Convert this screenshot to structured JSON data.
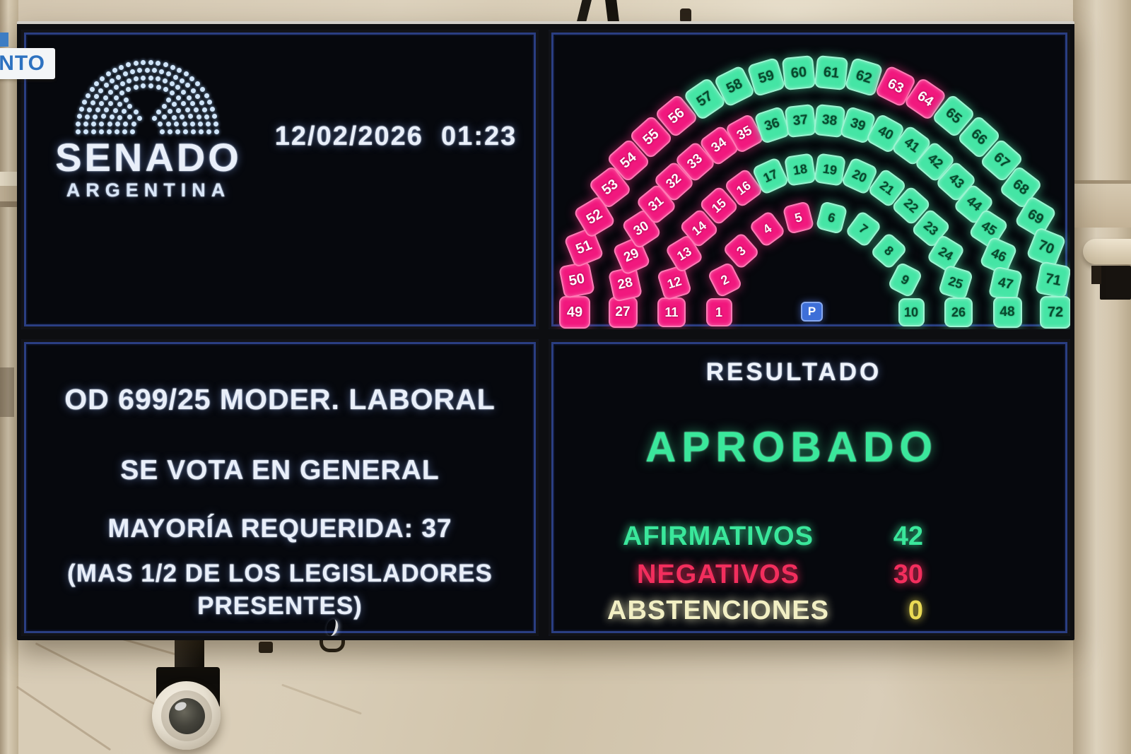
{
  "broadcast_badge": {
    "text": "NTO",
    "text_color": "#2e72c0"
  },
  "info_screen": {
    "logo_title": "SENADO",
    "logo_subtitle": "ARGENTINA",
    "datetime": "12/02/2026  01:23"
  },
  "vote_screen": {
    "order_line": "OD 699/25 MODER. LABORAL",
    "mode_line": "SE VOTA EN GENERAL",
    "majority_line": "MAYORÍA REQUERIDA: 37",
    "note_line1": "(MAS 1/2 DE LOS LEGISLADORES",
    "note_line2": "PRESENTES)"
  },
  "result_screen": {
    "title": "RESULTADO",
    "title_color": "#eef3fb",
    "verdict": "APROBADO",
    "verdict_color": "#3ae79b",
    "rows": [
      {
        "label": "AFIRMATIVOS",
        "value": "42",
        "label_color": "#3ae79b",
        "value_color": "#3ae79b"
      },
      {
        "label": "NEGATIVOS",
        "value": "30",
        "label_color": "#f22e5d",
        "value_color": "#f22e5d"
      },
      {
        "label": "ABSTENCIONES",
        "value": "0",
        "label_color": "#f2efc4",
        "value_color": "#e9da55"
      }
    ]
  },
  "seat_map": {
    "president_label": "P",
    "colors": {
      "affirmative": "#45e5a5",
      "negative": "#f1187e",
      "president": "#3e6fd8"
    },
    "affirmative_seats": [
      6,
      7,
      8,
      9,
      10,
      17,
      18,
      19,
      20,
      21,
      22,
      23,
      24,
      25,
      26,
      36,
      37,
      38,
      39,
      40,
      41,
      42,
      43,
      44,
      45,
      46,
      47,
      48,
      57,
      58,
      59,
      60,
      61,
      62,
      65,
      66,
      67,
      68,
      69,
      70,
      71,
      72
    ],
    "negative_seats": [
      1,
      2,
      3,
      4,
      5,
      11,
      12,
      13,
      14,
      15,
      16,
      27,
      28,
      29,
      30,
      31,
      32,
      33,
      34,
      35,
      49,
      50,
      51,
      52,
      53,
      54,
      55,
      56,
      63,
      64
    ]
  }
}
